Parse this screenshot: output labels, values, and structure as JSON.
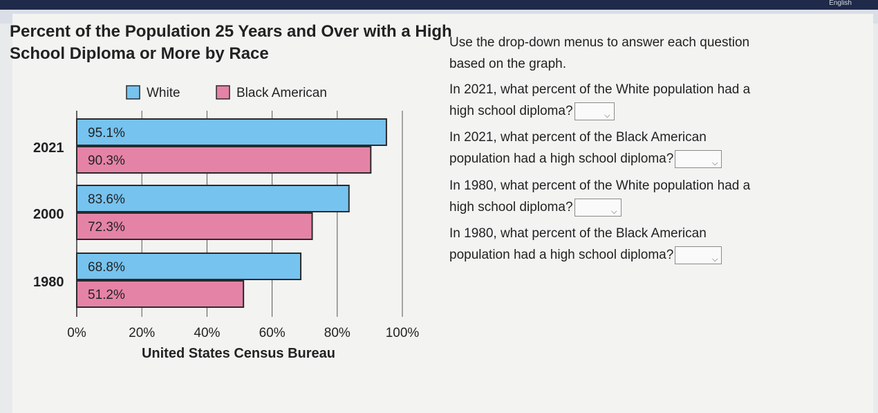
{
  "header": {
    "lang_label": "English"
  },
  "chart_data": {
    "type": "bar",
    "orientation": "horizontal",
    "title": "Percent of the Population 25 Years and Over with a High School Diploma or More by Race",
    "source": "United States Census Bureau",
    "categories": [
      "2021",
      "2000",
      "1980"
    ],
    "series": [
      {
        "name": "White",
        "values": [
          95.1,
          83.6,
          68.8
        ],
        "labels": [
          "95.1%",
          "83.6%",
          "68.8%"
        ],
        "color": "#76c3ef"
      },
      {
        "name": "Black American",
        "values": [
          90.3,
          72.3,
          51.2
        ],
        "labels": [
          "90.3%",
          "72.3%",
          "51.2%"
        ],
        "color": "#e583a6"
      }
    ],
    "xlim": [
      0,
      100
    ],
    "xticks": [
      0,
      20,
      40,
      60,
      80,
      100
    ],
    "xtick_labels": [
      "0%",
      "20%",
      "40%",
      "60%",
      "80%",
      "100%"
    ],
    "grid": true,
    "legend_position": "top"
  },
  "instructions": {
    "line1": "Use the drop-down menus to answer each question",
    "line2": "based on the graph."
  },
  "questions": [
    {
      "line1": "In 2021, what percent of the White population had a",
      "line2": "high school diploma?",
      "answer": ""
    },
    {
      "line1": "In 2021, what percent of the Black American",
      "line2": "population had a high school diploma?",
      "answer": ""
    },
    {
      "line1": "In 1980, what percent of the White population had a",
      "line2": "high school diploma?",
      "answer": ""
    },
    {
      "line1": "In 1980, what percent of the Black American",
      "line2": "population had a high school diploma?",
      "answer": ""
    }
  ],
  "dropdown_caret": "chevron-down-icon"
}
